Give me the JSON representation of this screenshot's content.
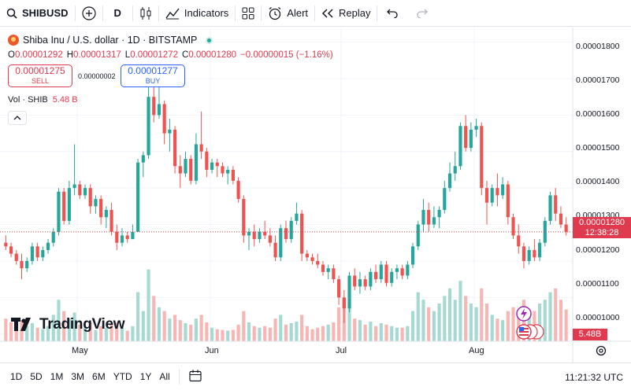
{
  "toolbar": {
    "symbol": "SHIBUSD",
    "interval": "D",
    "indicators_label": "Indicators",
    "alert_label": "Alert",
    "replay_label": "Replay"
  },
  "legend": {
    "title": "Shiba Inu / U.S. dollar · 1D · BITSTAMP",
    "o_key": "O",
    "o_val": "0.00001292",
    "h_key": "H",
    "h_val": "0.00001317",
    "l_key": "L",
    "l_val": "0.00001272",
    "c_key": "C",
    "c_val": "0.00001280",
    "change": "−0.00000015 (−1.16%)"
  },
  "trade": {
    "sell_price": "0.00001275",
    "sell_label": "SELL",
    "spread": "0.00000002",
    "buy_price": "0.00001277",
    "buy_label": "BUY"
  },
  "volume_legend": {
    "label": "Vol · SHIB",
    "value": "5.48 B"
  },
  "price_axis": {
    "labels": [
      "0.00001800",
      "0.00001700",
      "0.00001600",
      "0.00001500",
      "0.00001400",
      "0.00001300",
      "0.00001200",
      "0.00001100",
      "0.00001000"
    ],
    "current_price": "0.00001280",
    "countdown": "12:38:28",
    "volume_tag": "5.48B"
  },
  "watermark": "TradingView",
  "bottom_bar": {
    "ranges": [
      "1D",
      "5D",
      "1M",
      "3M",
      "6M",
      "YTD",
      "1Y",
      "All"
    ],
    "clock": "11:21:32 UTC"
  },
  "colors": {
    "up": "#26a69a",
    "down": "#ef5350",
    "up_vol": "#a5d9d2",
    "down_vol": "#f7b6b3"
  },
  "chart_data": {
    "type": "candlestick",
    "title": "Shiba Inu / U.S. dollar · 1D · BITSTAMP",
    "x_ticks": [
      "May",
      "Jun",
      "Jul",
      "Aug"
    ],
    "ylim": [
      9.8e-06,
      1.84e-05
    ],
    "volume_ylim": [
      0,
      1.0
    ],
    "current_close": 1.28e-05,
    "candles": [
      [
        1.25e-05,
        1.27e-05,
        1.23e-05,
        1.24e-05,
        0.3
      ],
      [
        1.24e-05,
        1.25e-05,
        1.21e-05,
        1.22e-05,
        0.25
      ],
      [
        1.22e-05,
        1.23e-05,
        1.19e-05,
        1.2e-05,
        0.22
      ],
      [
        1.2e-05,
        1.22e-05,
        1.15e-05,
        1.18e-05,
        0.28
      ],
      [
        1.18e-05,
        1.21e-05,
        1.17e-05,
        1.2e-05,
        0.2
      ],
      [
        1.2e-05,
        1.25e-05,
        1.19e-05,
        1.24e-05,
        0.24
      ],
      [
        1.24e-05,
        1.25e-05,
        1.2e-05,
        1.21e-05,
        0.18
      ],
      [
        1.21e-05,
        1.24e-05,
        1.2e-05,
        1.23e-05,
        0.16
      ],
      [
        1.23e-05,
        1.26e-05,
        1.22e-05,
        1.25e-05,
        0.2
      ],
      [
        1.25e-05,
        1.29e-05,
        1.24e-05,
        1.28e-05,
        0.35
      ],
      [
        1.28e-05,
        1.4e-05,
        1.27e-05,
        1.39e-05,
        0.55
      ],
      [
        1.39e-05,
        1.4e-05,
        1.3e-05,
        1.31e-05,
        0.4
      ],
      [
        1.31e-05,
        1.42e-05,
        1.3e-05,
        1.4e-05,
        0.3
      ],
      [
        1.4e-05,
        1.52e-05,
        1.38e-05,
        1.41e-05,
        0.38
      ],
      [
        1.41e-05,
        1.42e-05,
        1.37e-05,
        1.38e-05,
        0.22
      ],
      [
        1.38e-05,
        1.41e-05,
        1.37e-05,
        1.4e-05,
        0.18
      ],
      [
        1.4e-05,
        1.41e-05,
        1.33e-05,
        1.35e-05,
        0.25
      ],
      [
        1.35e-05,
        1.38e-05,
        1.33e-05,
        1.37e-05,
        0.15
      ],
      [
        1.37e-05,
        1.38e-05,
        1.3e-05,
        1.32e-05,
        0.2
      ],
      [
        1.32e-05,
        1.35e-05,
        1.29e-05,
        1.34e-05,
        0.18
      ],
      [
        1.34e-05,
        1.36e-05,
        1.27e-05,
        1.28e-05,
        0.22
      ],
      [
        1.28e-05,
        1.3e-05,
        1.23e-05,
        1.25e-05,
        0.25
      ],
      [
        1.25e-05,
        1.29e-05,
        1.24e-05,
        1.27e-05,
        0.18
      ],
      [
        1.27e-05,
        1.28e-05,
        1.25e-05,
        1.26e-05,
        0.14
      ],
      [
        1.26e-05,
        1.3e-05,
        1.26e-05,
        1.28e-05,
        0.2
      ],
      [
        1.28e-05,
        1.48e-05,
        1.28e-05,
        1.47e-05,
        0.65
      ],
      [
        1.47e-05,
        1.5e-05,
        1.43e-05,
        1.49e-05,
        0.4
      ],
      [
        1.49e-05,
        1.72e-05,
        1.48e-05,
        1.65e-05,
        0.95
      ],
      [
        1.65e-05,
        1.7e-05,
        1.58e-05,
        1.6e-05,
        0.6
      ],
      [
        1.6e-05,
        1.68e-05,
        1.59e-05,
        1.63e-05,
        0.45
      ],
      [
        1.63e-05,
        1.64e-05,
        1.52e-05,
        1.55e-05,
        0.4
      ],
      [
        1.55e-05,
        1.59e-05,
        1.5e-05,
        1.56e-05,
        0.3
      ],
      [
        1.56e-05,
        1.57e-05,
        1.44e-05,
        1.46e-05,
        0.35
      ],
      [
        1.46e-05,
        1.49e-05,
        1.4e-05,
        1.44e-05,
        0.28
      ],
      [
        1.44e-05,
        1.5e-05,
        1.43e-05,
        1.48e-05,
        0.24
      ],
      [
        1.48e-05,
        1.49e-05,
        1.41e-05,
        1.42e-05,
        0.22
      ],
      [
        1.42e-05,
        1.55e-05,
        1.41e-05,
        1.52e-05,
        0.3
      ],
      [
        1.52e-05,
        1.61e-05,
        1.48e-05,
        1.5e-05,
        0.35
      ],
      [
        1.5e-05,
        1.51e-05,
        1.43e-05,
        1.45e-05,
        0.25
      ],
      [
        1.45e-05,
        1.48e-05,
        1.44e-05,
        1.47e-05,
        0.18
      ],
      [
        1.47e-05,
        1.48e-05,
        1.43e-05,
        1.46e-05,
        0.16
      ],
      [
        1.46e-05,
        1.47e-05,
        1.43e-05,
        1.44e-05,
        0.15
      ],
      [
        1.44e-05,
        1.46e-05,
        1.41e-05,
        1.45e-05,
        0.14
      ],
      [
        1.45e-05,
        1.46e-05,
        1.41e-05,
        1.42e-05,
        0.15
      ],
      [
        1.42e-05,
        1.43e-05,
        1.36e-05,
        1.37e-05,
        0.22
      ],
      [
        1.37e-05,
        1.38e-05,
        1.25e-05,
        1.27e-05,
        0.4
      ],
      [
        1.27e-05,
        1.29e-05,
        1.23e-05,
        1.28e-05,
        0.25
      ],
      [
        1.28e-05,
        1.3e-05,
        1.24e-05,
        1.26e-05,
        0.2
      ],
      [
        1.26e-05,
        1.29e-05,
        1.25e-05,
        1.28e-05,
        0.18
      ],
      [
        1.28e-05,
        1.31e-05,
        1.26e-05,
        1.27e-05,
        0.2
      ],
      [
        1.27e-05,
        1.29e-05,
        1.24e-05,
        1.25e-05,
        0.18
      ],
      [
        1.25e-05,
        1.27e-05,
        1.2e-05,
        1.21e-05,
        0.3
      ],
      [
        1.21e-05,
        1.3e-05,
        1.2e-05,
        1.29e-05,
        0.35
      ],
      [
        1.29e-05,
        1.31e-05,
        1.25e-05,
        1.26e-05,
        0.22
      ],
      [
        1.26e-05,
        1.32e-05,
        1.25e-05,
        1.31e-05,
        0.24
      ],
      [
        1.31e-05,
        1.36e-05,
        1.3e-05,
        1.33e-05,
        0.26
      ],
      [
        1.33e-05,
        1.34e-05,
        1.2e-05,
        1.22e-05,
        0.35
      ],
      [
        1.22e-05,
        1.23e-05,
        1.2e-05,
        1.21e-05,
        0.2
      ],
      [
        1.21e-05,
        1.22e-05,
        1.19e-05,
        1.2e-05,
        0.16
      ],
      [
        1.2e-05,
        1.22e-05,
        1.18e-05,
        1.19e-05,
        0.18
      ],
      [
        1.19e-05,
        1.2e-05,
        1.16e-05,
        1.17e-05,
        0.2
      ],
      [
        1.17e-05,
        1.19e-05,
        1.15e-05,
        1.18e-05,
        0.22
      ],
      [
        1.18e-05,
        1.19e-05,
        1.14e-05,
        1.15e-05,
        0.25
      ],
      [
        1.15e-05,
        1.16e-05,
        1.08e-05,
        1.1e-05,
        0.45
      ],
      [
        1.1e-05,
        1.12e-05,
        1.03e-05,
        1.07e-05,
        0.55
      ],
      [
        1.07e-05,
        1.17e-05,
        1.06e-05,
        1.16e-05,
        0.5
      ],
      [
        1.16e-05,
        1.18e-05,
        1.12e-05,
        1.13e-05,
        0.3
      ],
      [
        1.13e-05,
        1.17e-05,
        1.11e-05,
        1.15e-05,
        0.28
      ],
      [
        1.15e-05,
        1.16e-05,
        1.12e-05,
        1.13e-05,
        0.22
      ],
      [
        1.13e-05,
        1.18e-05,
        1.12e-05,
        1.17e-05,
        0.26
      ],
      [
        1.17e-05,
        1.19e-05,
        1.14e-05,
        1.15e-05,
        0.2
      ],
      [
        1.15e-05,
        1.2e-05,
        1.14e-05,
        1.19e-05,
        0.24
      ],
      [
        1.19e-05,
        1.2e-05,
        1.13e-05,
        1.14e-05,
        0.22
      ],
      [
        1.14e-05,
        1.18e-05,
        1.13e-05,
        1.17e-05,
        0.2
      ],
      [
        1.17e-05,
        1.19e-05,
        1.15e-05,
        1.18e-05,
        0.18
      ],
      [
        1.18e-05,
        1.19e-05,
        1.15e-05,
        1.16e-05,
        0.18
      ],
      [
        1.16e-05,
        1.2e-05,
        1.15e-05,
        1.19e-05,
        0.2
      ],
      [
        1.19e-05,
        1.25e-05,
        1.18e-05,
        1.24e-05,
        0.4
      ],
      [
        1.24e-05,
        1.31e-05,
        1.23e-05,
        1.3e-05,
        0.65
      ],
      [
        1.3e-05,
        1.37e-05,
        1.28e-05,
        1.34e-05,
        0.55
      ],
      [
        1.34e-05,
        1.36e-05,
        1.28e-05,
        1.3e-05,
        0.45
      ],
      [
        1.3e-05,
        1.35e-05,
        1.29e-05,
        1.32e-05,
        0.4
      ],
      [
        1.32e-05,
        1.35e-05,
        1.29e-05,
        1.34e-05,
        0.5
      ],
      [
        1.34e-05,
        1.42e-05,
        1.33e-05,
        1.4e-05,
        0.6
      ],
      [
        1.4e-05,
        1.47e-05,
        1.39e-05,
        1.44e-05,
        0.7
      ],
      [
        1.44e-05,
        1.5e-05,
        1.42e-05,
        1.46e-05,
        0.55
      ],
      [
        1.46e-05,
        1.58e-05,
        1.45e-05,
        1.57e-05,
        0.8
      ],
      [
        1.57e-05,
        1.6e-05,
        1.5e-05,
        1.51e-05,
        0.6
      ],
      [
        1.51e-05,
        1.58e-05,
        1.5e-05,
        1.56e-05,
        0.5
      ],
      [
        1.56e-05,
        1.59e-05,
        1.54e-05,
        1.57e-05,
        0.45
      ],
      [
        1.57e-05,
        1.58e-05,
        1.38e-05,
        1.4e-05,
        0.7
      ],
      [
        1.4e-05,
        1.42e-05,
        1.3e-05,
        1.36e-05,
        0.5
      ],
      [
        1.36e-05,
        1.41e-05,
        1.35e-05,
        1.4e-05,
        0.35
      ],
      [
        1.4e-05,
        1.44e-05,
        1.35e-05,
        1.38e-05,
        0.3
      ],
      [
        1.38e-05,
        1.43e-05,
        1.37e-05,
        1.41e-05,
        0.28
      ],
      [
        1.41e-05,
        1.42e-05,
        1.3e-05,
        1.32e-05,
        0.4
      ],
      [
        1.32e-05,
        1.33e-05,
        1.26e-05,
        1.27e-05,
        0.45
      ],
      [
        1.27e-05,
        1.3e-05,
        1.22e-05,
        1.24e-05,
        0.4
      ],
      [
        1.24e-05,
        1.25e-05,
        1.18e-05,
        1.2e-05,
        0.55
      ],
      [
        1.2e-05,
        1.24e-05,
        1.19e-05,
        1.23e-05,
        0.35
      ],
      [
        1.23e-05,
        1.26e-05,
        1.2e-05,
        1.21e-05,
        0.4
      ],
      [
        1.21e-05,
        1.26e-05,
        1.2e-05,
        1.25e-05,
        0.5
      ],
      [
        1.25e-05,
        1.32e-05,
        1.24e-05,
        1.31e-05,
        0.55
      ],
      [
        1.31e-05,
        1.39e-05,
        1.3e-05,
        1.38e-05,
        0.65
      ],
      [
        1.38e-05,
        1.4e-05,
        1.31e-05,
        1.33e-05,
        0.7
      ],
      [
        1.33e-05,
        1.35e-05,
        1.29e-05,
        1.3e-05,
        0.55
      ],
      [
        1.3e-05,
        1.32e-05,
        1.27e-05,
        1.28e-05,
        0.42
      ]
    ]
  }
}
